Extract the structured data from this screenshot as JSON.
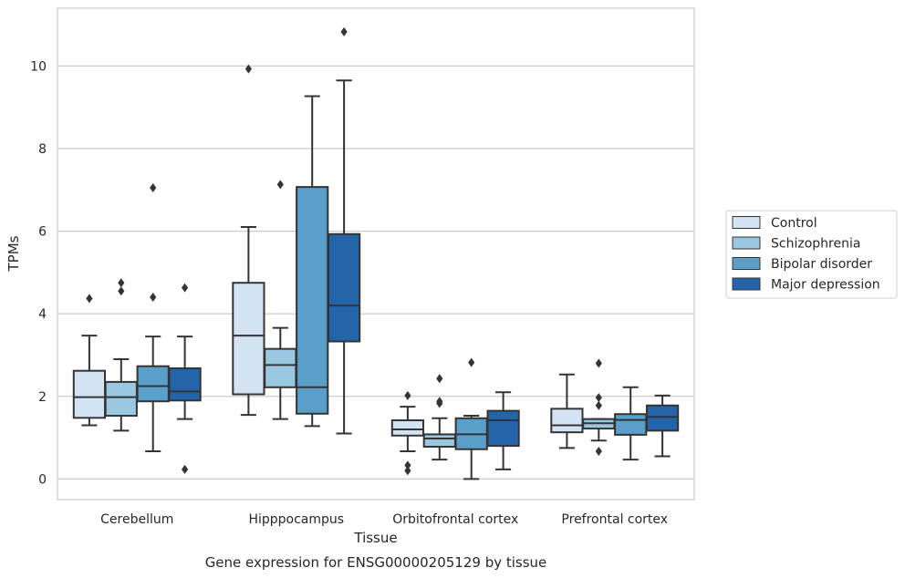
{
  "chart_data": {
    "type": "box",
    "caption": "Gene expression for ENSG00000205129 by tissue",
    "xlabel": "Tissue",
    "ylabel": "TPMs",
    "ylim": [
      -0.5,
      11.4
    ],
    "yticks": [
      0,
      2,
      4,
      6,
      8,
      10
    ],
    "grid": "horizontal",
    "legend_position": "right",
    "categories": [
      "Cerebellum",
      "Hipppocampus",
      "Orbitofrontal cortex",
      "Prefrontal cortex"
    ],
    "series": [
      {
        "name": "Control",
        "color": "#d3e3f3",
        "boxes": [
          {
            "whisker_low": 1.3,
            "q1": 1.48,
            "median": 1.98,
            "q3": 2.62,
            "whisker_high": 3.47,
            "outliers": [
              4.37
            ]
          },
          {
            "whisker_low": 1.55,
            "q1": 2.05,
            "median": 3.47,
            "q3": 4.75,
            "whisker_high": 6.1,
            "outliers": [
              9.93
            ]
          },
          {
            "whisker_low": 0.67,
            "q1": 1.05,
            "median": 1.2,
            "q3": 1.42,
            "whisker_high": 1.75,
            "outliers": [
              2.02,
              0.33,
              0.2
            ]
          },
          {
            "whisker_low": 0.75,
            "q1": 1.13,
            "median": 1.3,
            "q3": 1.7,
            "whisker_high": 2.53,
            "outliers": []
          }
        ]
      },
      {
        "name": "Schizophrenia",
        "color": "#9ac8e0",
        "boxes": [
          {
            "whisker_low": 1.17,
            "q1": 1.53,
            "median": 1.98,
            "q3": 2.35,
            "whisker_high": 2.9,
            "outliers": [
              4.75,
              4.55
            ]
          },
          {
            "whisker_low": 1.45,
            "q1": 2.22,
            "median": 2.76,
            "q3": 3.15,
            "whisker_high": 3.66,
            "outliers": [
              7.13
            ]
          },
          {
            "whisker_low": 0.47,
            "q1": 0.78,
            "median": 0.98,
            "q3": 1.08,
            "whisker_high": 1.47,
            "outliers": [
              2.43,
              1.88,
              1.83
            ]
          },
          {
            "whisker_low": 0.93,
            "q1": 1.22,
            "median": 1.35,
            "q3": 1.45,
            "whisker_high": 1.45,
            "outliers": [
              1.97,
              1.78,
              2.8,
              0.67
            ]
          }
        ]
      },
      {
        "name": "Bipolar disorder",
        "color": "#5a9fca",
        "boxes": [
          {
            "whisker_low": 0.67,
            "q1": 1.88,
            "median": 2.25,
            "q3": 2.73,
            "whisker_high": 3.45,
            "outliers": [
              7.05,
              4.4
            ]
          },
          {
            "whisker_low": 1.28,
            "q1": 1.58,
            "median": 2.22,
            "q3": 7.07,
            "whisker_high": 9.27,
            "outliers": []
          },
          {
            "whisker_low": 0.0,
            "q1": 0.72,
            "median": 1.08,
            "q3": 1.47,
            "whisker_high": 1.53,
            "outliers": [
              2.82
            ]
          },
          {
            "whisker_low": 0.47,
            "q1": 1.07,
            "median": 1.43,
            "q3": 1.57,
            "whisker_high": 2.22,
            "outliers": []
          }
        ]
      },
      {
        "name": "Major depression",
        "color": "#2364ab",
        "boxes": [
          {
            "whisker_low": 1.45,
            "q1": 1.9,
            "median": 2.12,
            "q3": 2.68,
            "whisker_high": 3.45,
            "outliers": [
              4.63,
              0.23
            ]
          },
          {
            "whisker_low": 1.1,
            "q1": 3.33,
            "median": 4.2,
            "q3": 5.93,
            "whisker_high": 9.65,
            "outliers": [
              10.83
            ]
          },
          {
            "whisker_low": 0.23,
            "q1": 0.8,
            "median": 1.42,
            "q3": 1.65,
            "whisker_high": 2.1,
            "outliers": []
          },
          {
            "whisker_low": 0.55,
            "q1": 1.17,
            "median": 1.5,
            "q3": 1.78,
            "whisker_high": 2.02,
            "outliers": []
          }
        ]
      }
    ]
  }
}
